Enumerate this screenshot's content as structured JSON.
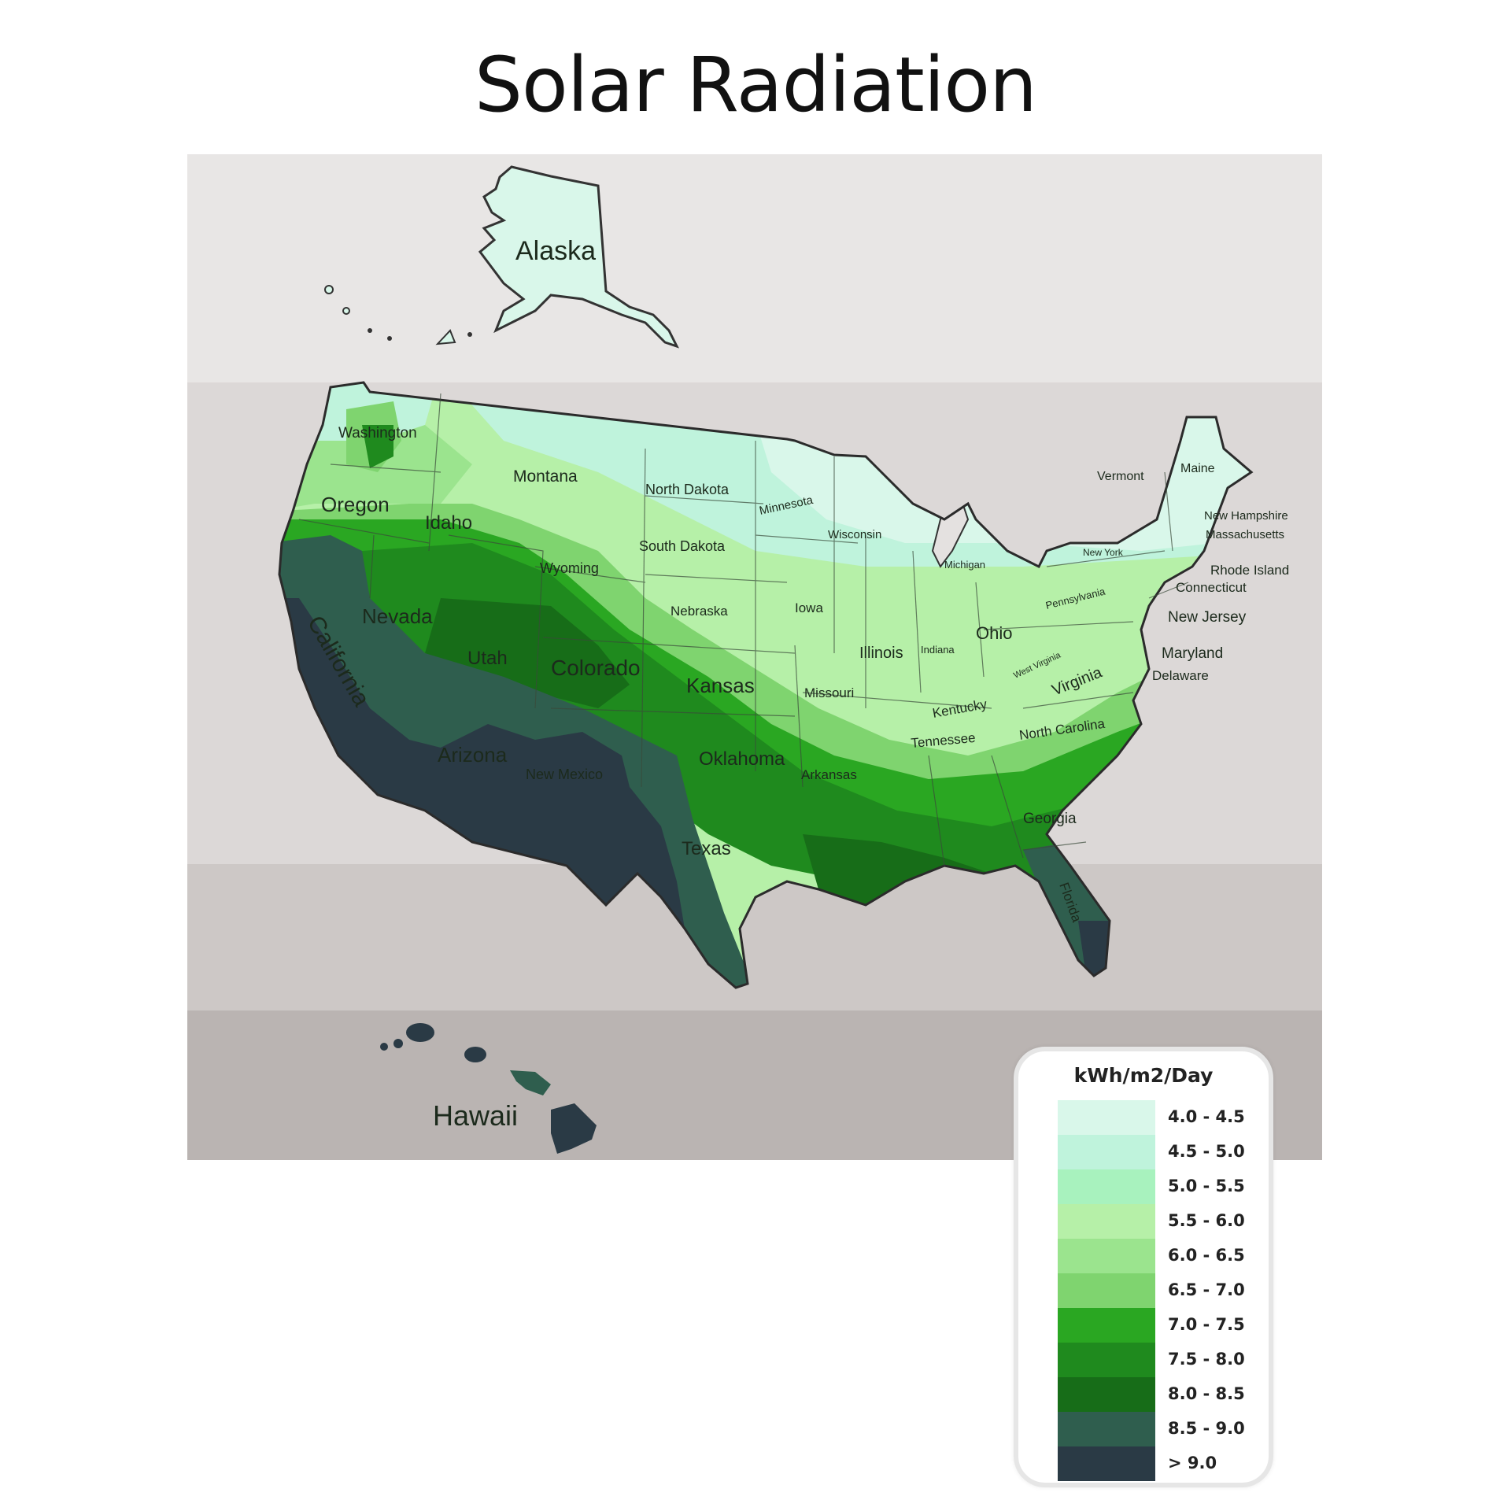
{
  "title": "Solar Radiation",
  "legend": {
    "title": "kWh/m2/Day",
    "classes": [
      {
        "label": "4.0 - 4.5",
        "color": "#d9f7ea"
      },
      {
        "label": "4.5 - 5.0",
        "color": "#bff3dc"
      },
      {
        "label": "5.0 - 5.5",
        "color": "#a8f2be"
      },
      {
        "label": "5.5 - 6.0",
        "color": "#b6f0a8"
      },
      {
        "label": "6.0 - 6.5",
        "color": "#9be48e"
      },
      {
        "label": "6.5 - 7.0",
        "color": "#7fd46f"
      },
      {
        "label": "7.0 - 7.5",
        "color": "#2aa722"
      },
      {
        "label": "7.5 - 8.0",
        "color": "#1f8a1e"
      },
      {
        "label": "8.0 - 8.5",
        "color": "#176d18"
      },
      {
        "label": "8.5 - 9.0",
        "color": "#2f5e4e"
      },
      {
        "label": "> 9.0",
        "color": "#2a3a45"
      }
    ]
  },
  "regions": {
    "alaska": "Alaska",
    "hawaii": "Hawaii"
  },
  "states": {
    "washington": "Washington",
    "oregon": "Oregon",
    "idaho": "Idaho",
    "montana": "Montana",
    "north_dakota": "North Dakota",
    "south_dakota": "South Dakota",
    "minnesota": "Minnesota",
    "wisconsin": "Wisconsin",
    "michigan": "Michigan",
    "wyoming": "Wyoming",
    "nevada": "Nevada",
    "california": "California",
    "utah": "Utah",
    "colorado": "Colorado",
    "nebraska": "Nebraska",
    "iowa": "Iowa",
    "illinois": "Illinois",
    "indiana": "Indiana",
    "ohio": "Ohio",
    "kansas": "Kansas",
    "missouri": "Missouri",
    "kentucky": "Kentucky",
    "arizona": "Arizona",
    "new_mexico": "New Mexico",
    "oklahoma": "Oklahoma",
    "arkansas": "Arkansas",
    "tennessee": "Tennessee",
    "north_carolina": "North Carolina",
    "texas": "Texas",
    "georgia": "Georgia",
    "florida": "Florida",
    "virginia": "Virginia",
    "west_virginia": "West Virginia",
    "pennsylvania": "Pennsylvania",
    "new_york": "New York",
    "vermont": "Vermont",
    "maine": "Maine",
    "new_hampshire": "New Hampshire",
    "massachusetts": "Massachusetts",
    "rhode_island": "Rhode Island",
    "connecticut": "Connecticut",
    "new_jersey": "New Jersey",
    "maryland": "Maryland",
    "delaware": "Delaware"
  }
}
